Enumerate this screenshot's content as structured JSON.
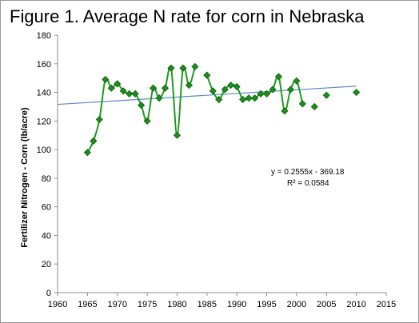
{
  "figure_title": "Figure 1. Average N rate for corn in Nebraska",
  "chart_data": {
    "type": "scatter",
    "ylabel": "Fertilizer Nitrogen - Corn (lb/acre)",
    "xlim": [
      1960,
      2015
    ],
    "ylim": [
      0,
      180
    ],
    "x_ticks": [
      "1960",
      "1965",
      "1970",
      "1975",
      "1980",
      "1985",
      "1990",
      "1995",
      "2000",
      "2005",
      "2010",
      "2015"
    ],
    "y_ticks": [
      "0",
      "20",
      "40",
      "60",
      "80",
      "100",
      "120",
      "140",
      "160",
      "180"
    ],
    "grid": false,
    "series": [
      {
        "type": "line",
        "color": "#1f9a1f",
        "x": [
          1965,
          1966,
          1967,
          1968,
          1969,
          1970,
          1971,
          1972,
          1973,
          1974,
          1975,
          1976,
          1977,
          1978,
          1979,
          1980,
          1981,
          1982,
          1983,
          null,
          1985,
          1986,
          1987,
          1988,
          1989,
          1990,
          1991,
          1992,
          1993,
          1994,
          1995,
          1996,
          1997,
          1998,
          1999,
          2000,
          2001,
          null,
          2003,
          null,
          2005,
          null,
          2010
        ],
        "y": [
          98,
          106,
          121,
          149,
          143,
          146,
          141,
          139,
          139,
          131,
          120,
          143,
          136,
          143,
          157,
          110,
          157,
          145,
          158,
          null,
          152,
          141,
          135,
          142,
          145,
          144,
          135,
          136,
          136,
          139,
          139,
          142,
          151,
          127,
          142,
          148,
          132,
          null,
          130,
          null,
          138,
          null,
          140
        ]
      }
    ],
    "trendline": {
      "type": "linear",
      "color": "#5b8ac7",
      "slope": 0.2555,
      "intercept": -369.18,
      "x_range": [
        1960,
        2010
      ],
      "equation": "y = 0.2555x - 369.18",
      "r2_label": "R² = 0.0584"
    }
  }
}
